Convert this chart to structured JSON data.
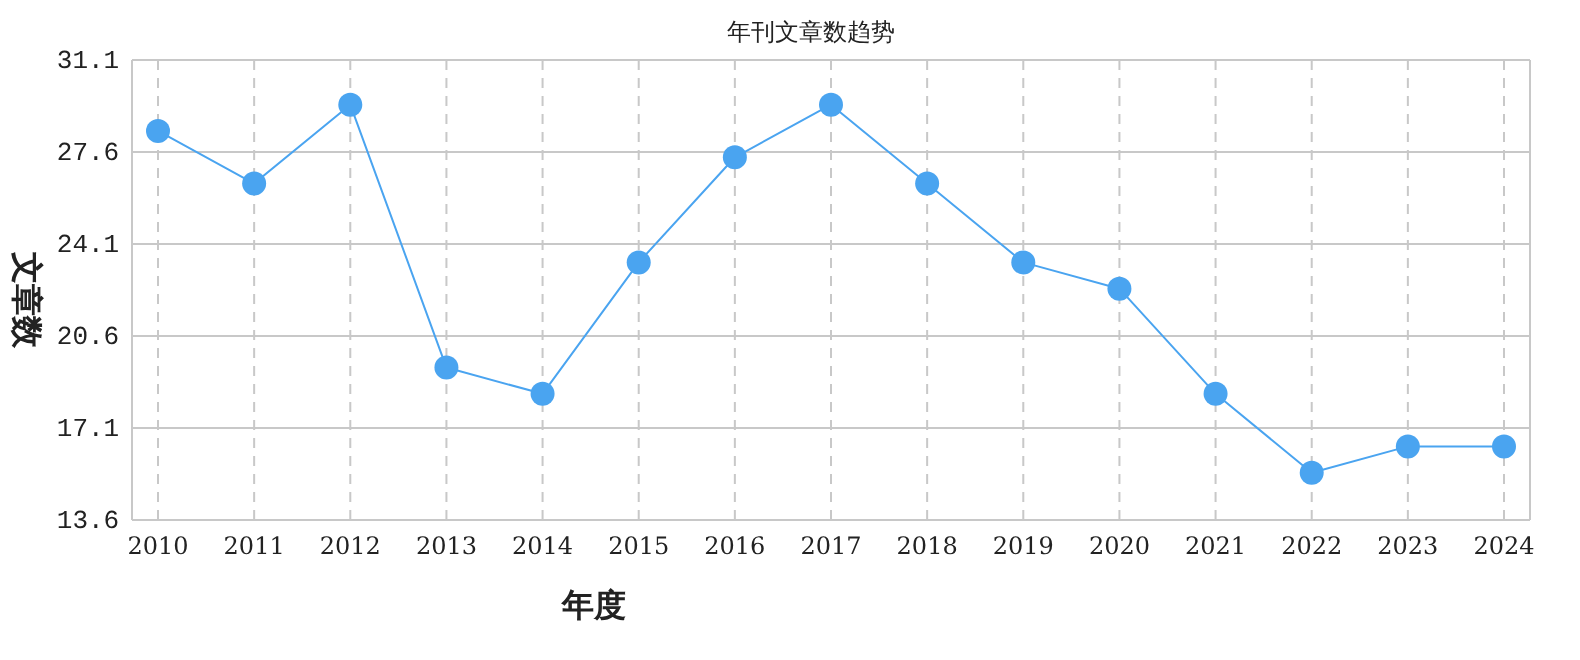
{
  "chart_data": {
    "type": "line",
    "title": "年刊文章数趋势",
    "xlabel": "年度",
    "ylabel": "文章数",
    "categories": [
      "2010",
      "2011",
      "2012",
      "2013",
      "2014",
      "2015",
      "2016",
      "2017",
      "2018",
      "2019",
      "2020",
      "2021",
      "2022",
      "2023",
      "2024"
    ],
    "series": [
      {
        "color": "#4aa4f0",
        "values": [
          28.4,
          26.4,
          29.4,
          19.4,
          18.4,
          23.4,
          27.4,
          29.4,
          26.4,
          23.4,
          22.4,
          18.4,
          15.4,
          16.4,
          16.4
        ]
      }
    ],
    "ylim": [
      13.6,
      31.1
    ],
    "yticks": [
      13.6,
      17.1,
      20.6,
      24.1,
      27.6,
      31.1
    ],
    "grid": true,
    "marker": "circle",
    "line_style": "solid"
  }
}
